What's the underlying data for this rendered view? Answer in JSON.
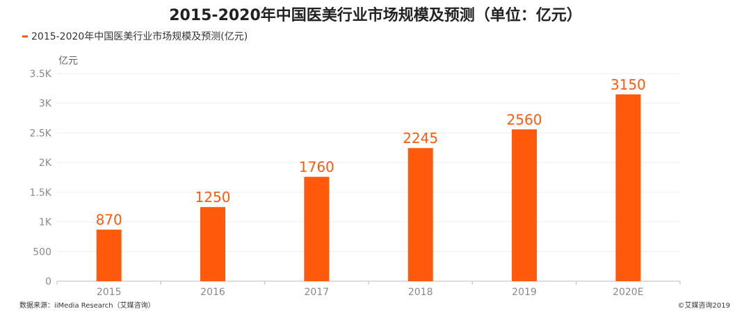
{
  "title": "2015-2020年中国医美行业市场规模及预测（单位：亿元）",
  "source": "数据来源：iiMedia Research（艾媒咨询）",
  "copyright": "©艾媒咨询2019",
  "colors": {
    "bar": "#FF5A0B",
    "label": "#FF5A0B",
    "axis": "#888888",
    "grid": "#EEEEEE"
  },
  "chart_data": {
    "type": "bar",
    "categories": [
      "2015",
      "2016",
      "2017",
      "2018",
      "2019",
      "2020E"
    ],
    "series": [
      {
        "name": "2015-2020年中国医美行业市场规模及预测(亿元)",
        "values": [
          870,
          1250,
          1760,
          2245,
          2560,
          3150
        ]
      }
    ],
    "ylabel": "亿元",
    "ylim": [
      0,
      3500
    ],
    "yticks": [
      0,
      500,
      1000,
      1500,
      2000,
      2500,
      3000,
      3500
    ],
    "ytick_labels": [
      "0",
      "500",
      "1K",
      "1.5K",
      "2K",
      "2.5K",
      "3K",
      "3.5K"
    ],
    "data_labels": true,
    "grid": true,
    "legend": "top-left"
  }
}
